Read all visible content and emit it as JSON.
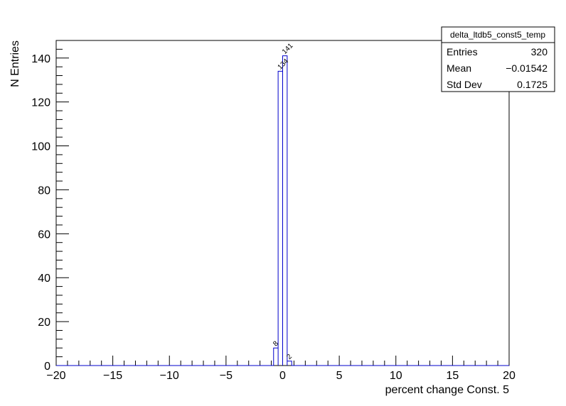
{
  "chart_data": {
    "type": "bar",
    "histogram_style": "step",
    "xlabel": "percent change Const. 5",
    "ylabel": "N Entries",
    "xlim": [
      -20,
      20
    ],
    "ylim": [
      0,
      148
    ],
    "grid": false,
    "x_ticks": [
      -20,
      -15,
      -10,
      -5,
      0,
      5,
      10,
      15,
      20
    ],
    "x_tick_labels": [
      "−20",
      "−15",
      "−10",
      "−5",
      "0",
      "5",
      "10",
      "15",
      "20"
    ],
    "y_ticks": [
      0,
      20,
      40,
      60,
      80,
      100,
      120,
      140
    ],
    "y_tick_labels": [
      "0",
      "20",
      "40",
      "60",
      "80",
      "100",
      "120",
      "140"
    ],
    "bin_width": 0.4,
    "bins": [
      {
        "x0": -0.8,
        "x1": -0.4,
        "value": 8
      },
      {
        "x0": -0.4,
        "x1": 0,
        "value": 134
      },
      {
        "x0": 0,
        "x1": 0.4,
        "value": 141
      },
      {
        "x0": 0.4,
        "x1": 0.8,
        "value": 2
      }
    ],
    "data_labels": [
      "8",
      "134",
      "141",
      "2"
    ],
    "line_color": "#0000cc",
    "stats": {
      "title": "delta_ltdb5_const5_temp",
      "rows": [
        {
          "label": "Entries",
          "value": "320"
        },
        {
          "label": "Mean",
          "value": "−0.01542"
        },
        {
          "label": "Std Dev",
          "value": "0.1725"
        }
      ],
      "placement": "top-right"
    }
  }
}
